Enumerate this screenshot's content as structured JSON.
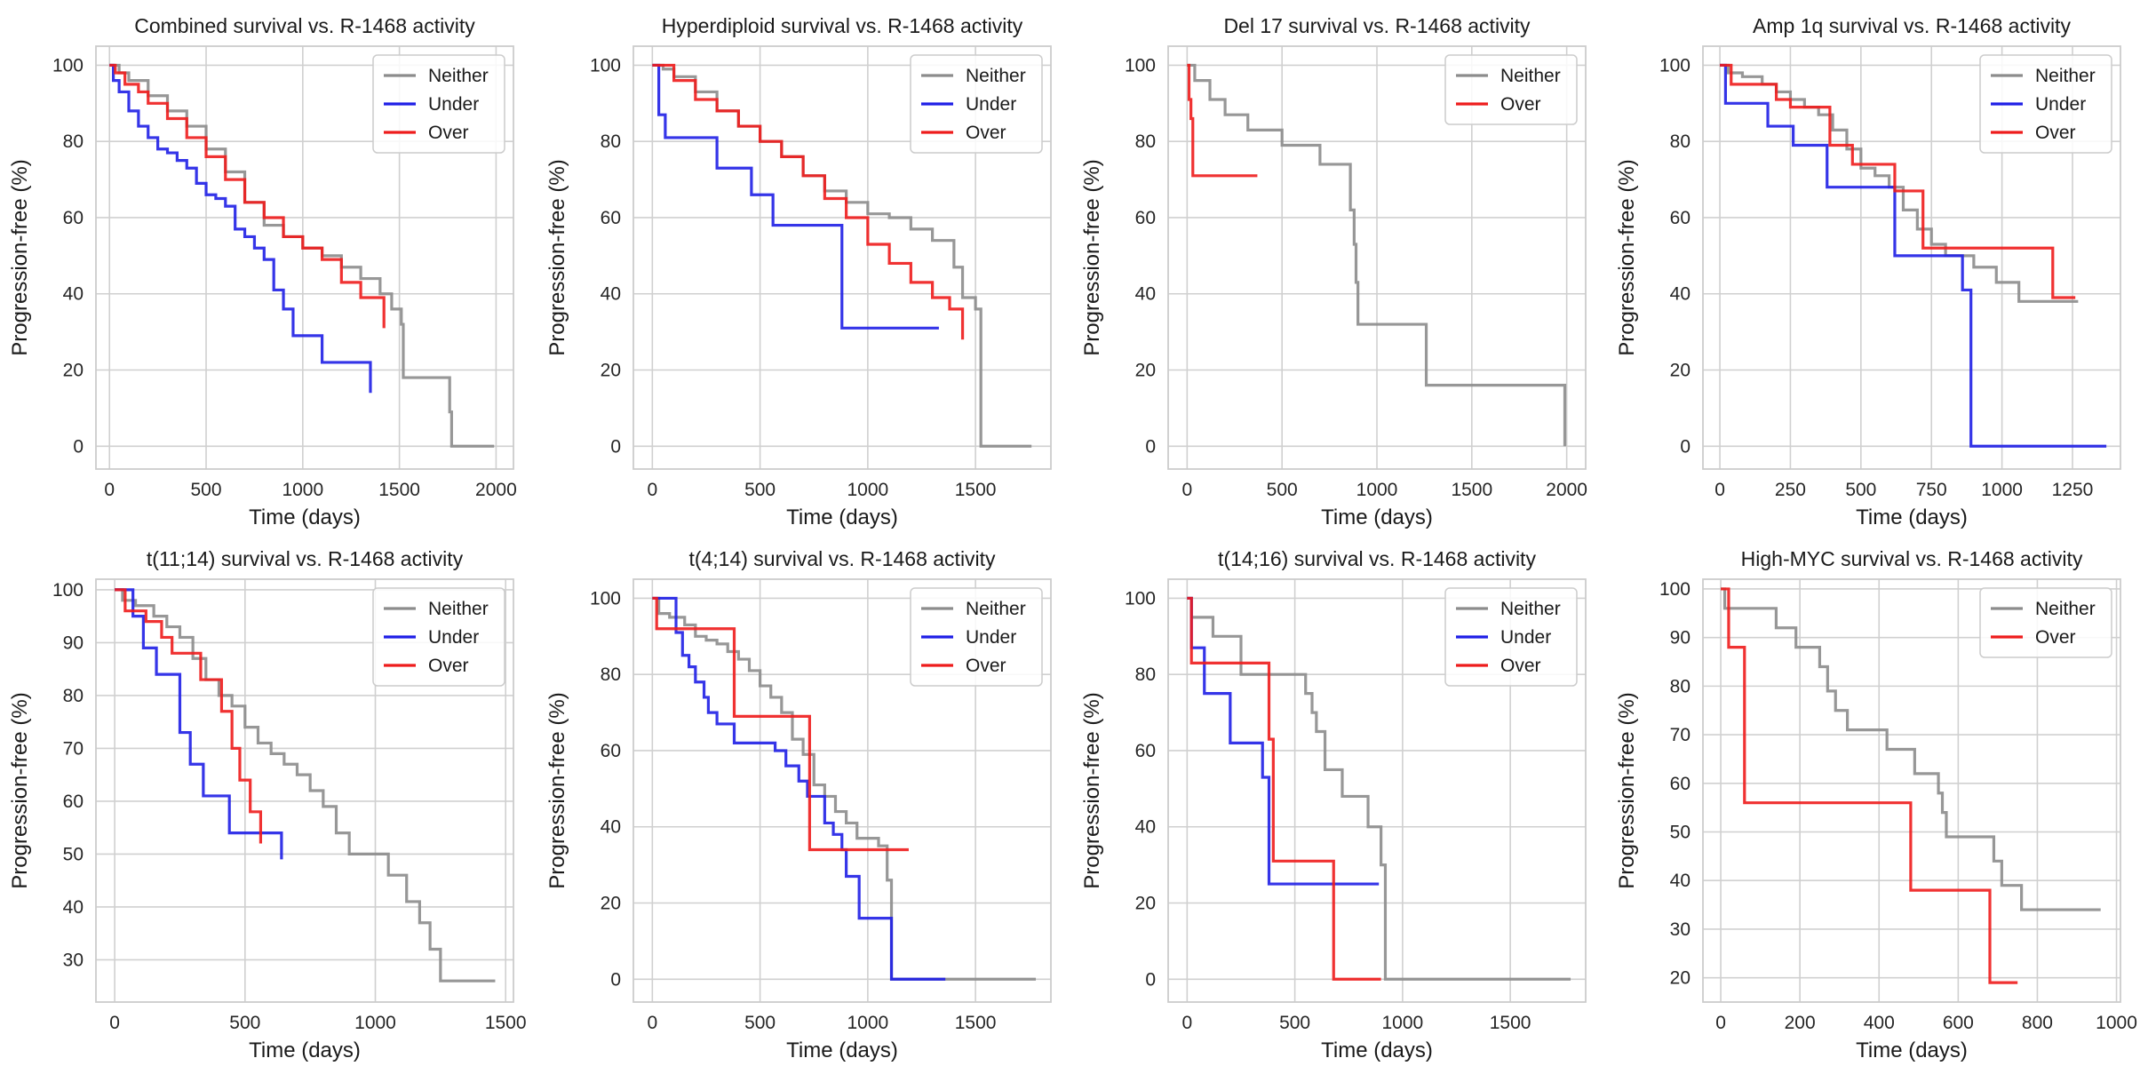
{
  "colors": {
    "Neither": "#8c8c8c",
    "Under": "#1f1fe6",
    "Over": "#ee1c1c",
    "grid": "#d0d0d0",
    "frame": "#cccccc"
  },
  "chart_data": [
    {
      "type": "line",
      "step": true,
      "title": "Combined survival vs. R-1468 activity",
      "xlabel": "Time (days)",
      "ylabel": "Progression-free (%)",
      "xlim": [
        -70,
        2090
      ],
      "ylim": [
        -6,
        105
      ],
      "xticks": [
        0,
        500,
        1000,
        1500,
        2000
      ],
      "yticks": [
        0,
        20,
        40,
        60,
        80,
        100
      ],
      "legend": "top-right",
      "series": [
        {
          "name": "Neither",
          "x": [
            0,
            50,
            100,
            200,
            300,
            400,
            500,
            600,
            700,
            800,
            900,
            1000,
            1100,
            1200,
            1300,
            1400,
            1460,
            1510,
            1520,
            1760,
            1770,
            1990
          ],
          "y": [
            100,
            98,
            96,
            92,
            88,
            84,
            78,
            72,
            64,
            58,
            55,
            52,
            50,
            47,
            44,
            40,
            36,
            32,
            18,
            9,
            0,
            0
          ]
        },
        {
          "name": "Under",
          "x": [
            0,
            20,
            50,
            100,
            150,
            200,
            250,
            300,
            350,
            400,
            450,
            500,
            550,
            600,
            650,
            700,
            750,
            800,
            850,
            900,
            950,
            1100,
            1350
          ],
          "y": [
            100,
            96,
            93,
            88,
            84,
            81,
            78,
            77,
            75,
            73,
            69,
            66,
            65,
            63,
            57,
            55,
            52,
            49,
            41,
            36,
            29,
            22,
            14
          ]
        },
        {
          "name": "Over",
          "x": [
            0,
            30,
            80,
            150,
            200,
            300,
            400,
            500,
            600,
            700,
            800,
            900,
            1000,
            1100,
            1200,
            1300,
            1420
          ],
          "y": [
            100,
            98,
            95,
            93,
            90,
            86,
            81,
            76,
            70,
            64,
            60,
            55,
            52,
            49,
            43,
            39,
            31
          ]
        }
      ]
    },
    {
      "type": "line",
      "step": true,
      "title": "Hyperdiploid survival vs. R-1468 activity",
      "xlabel": "Time (days)",
      "ylabel": "Progression-free (%)",
      "xlim": [
        -88,
        1850
      ],
      "ylim": [
        -6,
        105
      ],
      "xticks": [
        0,
        500,
        1000,
        1500
      ],
      "yticks": [
        0,
        20,
        40,
        60,
        80,
        100
      ],
      "legend": "top-right",
      "series": [
        {
          "name": "Neither",
          "x": [
            0,
            50,
            100,
            200,
            300,
            400,
            500,
            600,
            700,
            800,
            900,
            1000,
            1100,
            1200,
            1300,
            1400,
            1440,
            1500,
            1525,
            1760
          ],
          "y": [
            100,
            99,
            97,
            93,
            88,
            84,
            80,
            76,
            71,
            67,
            64,
            61,
            60,
            57,
            54,
            47,
            39,
            36,
            0,
            0
          ]
        },
        {
          "name": "Under",
          "x": [
            0,
            30,
            60,
            300,
            460,
            560,
            880,
            1330
          ],
          "y": [
            100,
            87,
            81,
            73,
            66,
            58,
            31,
            31
          ]
        },
        {
          "name": "Over",
          "x": [
            0,
            100,
            200,
            300,
            400,
            500,
            600,
            700,
            800,
            900,
            1000,
            1100,
            1200,
            1300,
            1380,
            1440
          ],
          "y": [
            100,
            96,
            91,
            88,
            84,
            80,
            76,
            71,
            65,
            60,
            53,
            48,
            43,
            39,
            36,
            28
          ]
        }
      ]
    },
    {
      "type": "line",
      "step": true,
      "title": "Del 17 survival vs. R-1468 activity",
      "xlabel": "Time (days)",
      "ylabel": "Progression-free (%)",
      "xlim": [
        -100,
        2100
      ],
      "ylim": [
        -6,
        105
      ],
      "xticks": [
        0,
        500,
        1000,
        1500,
        2000
      ],
      "yticks": [
        0,
        20,
        40,
        60,
        80,
        100
      ],
      "legend": "top-right",
      "series": [
        {
          "name": "Neither",
          "x": [
            0,
            40,
            120,
            200,
            320,
            500,
            600,
            700,
            860,
            880,
            890,
            900,
            1260,
            1990
          ],
          "y": [
            100,
            96,
            91,
            87,
            83,
            79,
            79,
            74,
            62,
            53,
            43,
            32,
            16,
            0
          ]
        },
        {
          "name": "Over",
          "x": [
            0,
            10,
            20,
            30,
            370
          ],
          "y": [
            100,
            91,
            86,
            71,
            71
          ]
        }
      ]
    },
    {
      "type": "line",
      "step": true,
      "title": "Amp 1q survival vs. R-1468 activity",
      "xlabel": "Time (days)",
      "ylabel": "Progression-free (%)",
      "xlim": [
        -60,
        1420
      ],
      "ylim": [
        -6,
        105
      ],
      "xticks": [
        0,
        250,
        500,
        750,
        1000,
        1250
      ],
      "yticks": [
        0,
        20,
        40,
        60,
        80,
        100
      ],
      "legend": "top-right",
      "series": [
        {
          "name": "Neither",
          "x": [
            0,
            30,
            80,
            150,
            200,
            250,
            300,
            350,
            400,
            450,
            500,
            550,
            600,
            650,
            700,
            750,
            800,
            900,
            980,
            1060,
            1270
          ],
          "y": [
            100,
            98,
            97,
            95,
            93,
            91,
            89,
            87,
            83,
            78,
            73,
            71,
            68,
            62,
            57,
            53,
            50,
            47,
            43,
            38,
            38
          ]
        },
        {
          "name": "Under",
          "x": [
            0,
            20,
            170,
            260,
            380,
            550,
            620,
            860,
            890,
            1370
          ],
          "y": [
            100,
            90,
            84,
            79,
            68,
            68,
            50,
            41,
            0,
            0
          ]
        },
        {
          "name": "Over",
          "x": [
            0,
            40,
            200,
            250,
            390,
            470,
            620,
            720,
            1180,
            1260
          ],
          "y": [
            100,
            95,
            91,
            89,
            79,
            74,
            67,
            52,
            39,
            39
          ]
        }
      ]
    },
    {
      "type": "line",
      "step": true,
      "title": "t(11;14) survival vs. R-1468 activity",
      "xlabel": "Time (days)",
      "ylabel": "Progression-free (%)",
      "xlim": [
        -72,
        1530
      ],
      "ylim": [
        22,
        102
      ],
      "xticks": [
        0,
        500,
        1000,
        1500
      ],
      "yticks": [
        30,
        40,
        50,
        60,
        70,
        80,
        90,
        100
      ],
      "legend": "top-right",
      "series": [
        {
          "name": "Neither",
          "x": [
            0,
            30,
            80,
            150,
            200,
            250,
            300,
            350,
            400,
            450,
            500,
            550,
            600,
            650,
            700,
            750,
            800,
            850,
            900,
            1050,
            1120,
            1170,
            1210,
            1250,
            1460
          ],
          "y": [
            100,
            98,
            97,
            95,
            93,
            91,
            87,
            83,
            80,
            78,
            74,
            71,
            69,
            67,
            65,
            62,
            59,
            54,
            50,
            46,
            41,
            37,
            32,
            26,
            26
          ]
        },
        {
          "name": "Under",
          "x": [
            0,
            70,
            110,
            160,
            250,
            290,
            340,
            440,
            640
          ],
          "y": [
            100,
            95,
            89,
            84,
            73,
            67,
            61,
            54,
            49
          ]
        },
        {
          "name": "Over",
          "x": [
            0,
            40,
            120,
            180,
            220,
            330,
            410,
            450,
            480,
            520,
            560
          ],
          "y": [
            100,
            96,
            94,
            91,
            88,
            83,
            77,
            70,
            64,
            58,
            52
          ]
        }
      ]
    },
    {
      "type": "line",
      "step": true,
      "title": "t(4;14) survival vs. R-1468 activity",
      "xlabel": "Time (days)",
      "ylabel": "Progression-free (%)",
      "xlim": [
        -88,
        1850
      ],
      "ylim": [
        -6,
        105
      ],
      "xticks": [
        0,
        500,
        1000,
        1500
      ],
      "yticks": [
        0,
        20,
        40,
        60,
        80,
        100
      ],
      "legend": "top-right",
      "series": [
        {
          "name": "Neither",
          "x": [
            0,
            30,
            80,
            150,
            200,
            250,
            300,
            350,
            400,
            450,
            500,
            550,
            600,
            650,
            700,
            750,
            800,
            850,
            900,
            950,
            1050,
            1090,
            1110,
            1780
          ],
          "y": [
            100,
            96,
            95,
            93,
            90,
            89,
            88,
            86,
            84,
            81,
            77,
            74,
            70,
            63,
            59,
            51,
            48,
            44,
            41,
            37,
            35,
            26,
            0,
            0
          ]
        },
        {
          "name": "Under",
          "x": [
            0,
            110,
            140,
            170,
            200,
            240,
            260,
            300,
            380,
            570,
            620,
            680,
            720,
            800,
            840,
            880,
            900,
            960,
            1110,
            1360
          ],
          "y": [
            100,
            91,
            85,
            82,
            78,
            74,
            70,
            67,
            62,
            60,
            56,
            52,
            48,
            41,
            38,
            34,
            27,
            16,
            0,
            0
          ]
        },
        {
          "name": "Over",
          "x": [
            0,
            20,
            380,
            710,
            730,
            1190
          ],
          "y": [
            100,
            92,
            69,
            69,
            34,
            34
          ]
        }
      ]
    },
    {
      "type": "line",
      "step": true,
      "title": "t(14;16) survival vs. R-1468 activity",
      "xlabel": "Time (days)",
      "ylabel": "Progression-free (%)",
      "xlim": [
        -88,
        1850
      ],
      "ylim": [
        -6,
        105
      ],
      "xticks": [
        0,
        500,
        1000,
        1500
      ],
      "yticks": [
        0,
        20,
        40,
        60,
        80,
        100
      ],
      "legend": "top-right",
      "series": [
        {
          "name": "Neither",
          "x": [
            0,
            20,
            120,
            250,
            500,
            550,
            580,
            600,
            640,
            720,
            840,
            900,
            920,
            1780
          ],
          "y": [
            100,
            95,
            90,
            80,
            80,
            75,
            70,
            65,
            55,
            48,
            40,
            30,
            0,
            0
          ]
        },
        {
          "name": "Under",
          "x": [
            0,
            20,
            80,
            200,
            350,
            380,
            890
          ],
          "y": [
            100,
            87,
            75,
            62,
            53,
            25,
            25
          ]
        },
        {
          "name": "Over",
          "x": [
            0,
            20,
            380,
            400,
            680,
            900
          ],
          "y": [
            100,
            83,
            63,
            31,
            0,
            0
          ]
        }
      ]
    },
    {
      "type": "line",
      "step": true,
      "title": "High-MYC survival vs. R-1468 activity",
      "xlabel": "Time (days)",
      "ylabel": "Progression-free (%)",
      "xlim": [
        -45,
        1010
      ],
      "ylim": [
        15,
        102
      ],
      "xticks": [
        0,
        200,
        400,
        600,
        800,
        1000
      ],
      "yticks": [
        20,
        30,
        40,
        50,
        60,
        70,
        80,
        90,
        100
      ],
      "legend": "top-right",
      "series": [
        {
          "name": "Neither",
          "x": [
            0,
            10,
            140,
            190,
            250,
            270,
            290,
            320,
            420,
            490,
            550,
            560,
            570,
            690,
            710,
            760,
            960
          ],
          "y": [
            100,
            96,
            92,
            88,
            84,
            79,
            75,
            71,
            67,
            62,
            58,
            54,
            49,
            44,
            39,
            34,
            34
          ]
        },
        {
          "name": "Over",
          "x": [
            0,
            20,
            60,
            480,
            680,
            750
          ],
          "y": [
            100,
            88,
            56,
            38,
            19,
            19
          ]
        }
      ]
    }
  ]
}
